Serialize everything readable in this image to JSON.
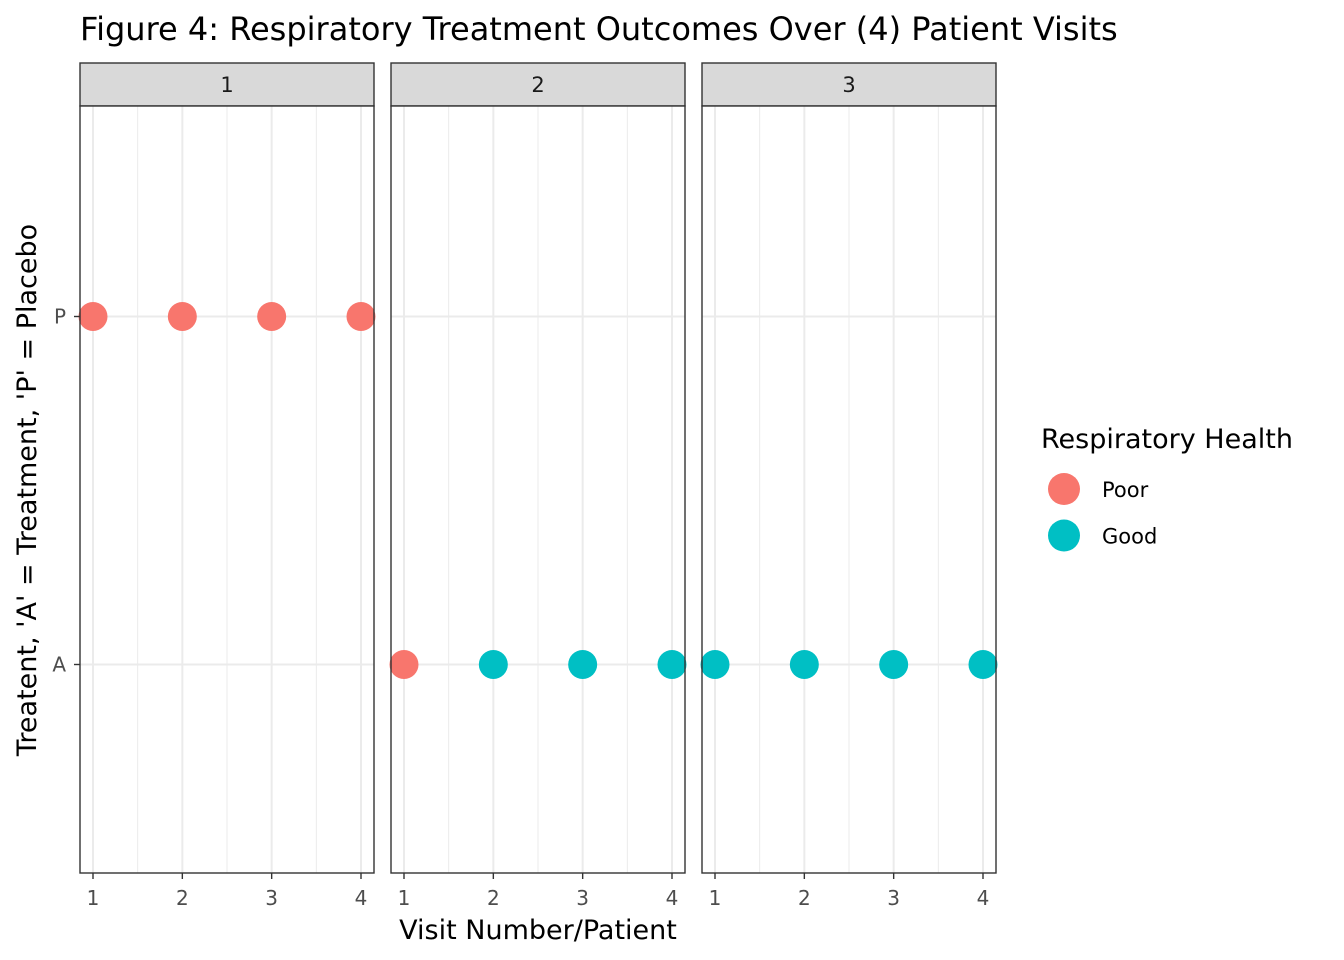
{
  "chart_data": {
    "type": "scatter",
    "title": "Figure 4: Respiratory Treatment Outcomes Over (4) Patient Visits",
    "xlabel": "Visit Number/Patient",
    "ylabel": "Treatent, 'A' = Treatment, 'P' = Placebo",
    "facet_labels": [
      "1",
      "2",
      "3"
    ],
    "x_ticks": [
      1,
      2,
      3,
      4
    ],
    "y_categories": [
      "A",
      "P"
    ],
    "legend": {
      "title": "Respiratory Health",
      "position": "right",
      "entries": [
        {
          "label": "Poor",
          "color": "#F8766D"
        },
        {
          "label": "Good",
          "color": "#00BFC4"
        }
      ]
    },
    "grid": true,
    "panels": [
      {
        "facet": "1",
        "points": [
          {
            "x": 1,
            "y": "P",
            "health": "Poor"
          },
          {
            "x": 2,
            "y": "P",
            "health": "Poor"
          },
          {
            "x": 3,
            "y": "P",
            "health": "Poor"
          },
          {
            "x": 4,
            "y": "P",
            "health": "Poor"
          }
        ]
      },
      {
        "facet": "2",
        "points": [
          {
            "x": 1,
            "y": "A",
            "health": "Poor"
          },
          {
            "x": 2,
            "y": "A",
            "health": "Good"
          },
          {
            "x": 3,
            "y": "A",
            "health": "Good"
          },
          {
            "x": 4,
            "y": "A",
            "health": "Good"
          }
        ]
      },
      {
        "facet": "3",
        "points": [
          {
            "x": 1,
            "y": "A",
            "health": "Good"
          },
          {
            "x": 2,
            "y": "A",
            "health": "Good"
          },
          {
            "x": 3,
            "y": "A",
            "health": "Good"
          },
          {
            "x": 4,
            "y": "A",
            "health": "Good"
          }
        ]
      }
    ]
  }
}
